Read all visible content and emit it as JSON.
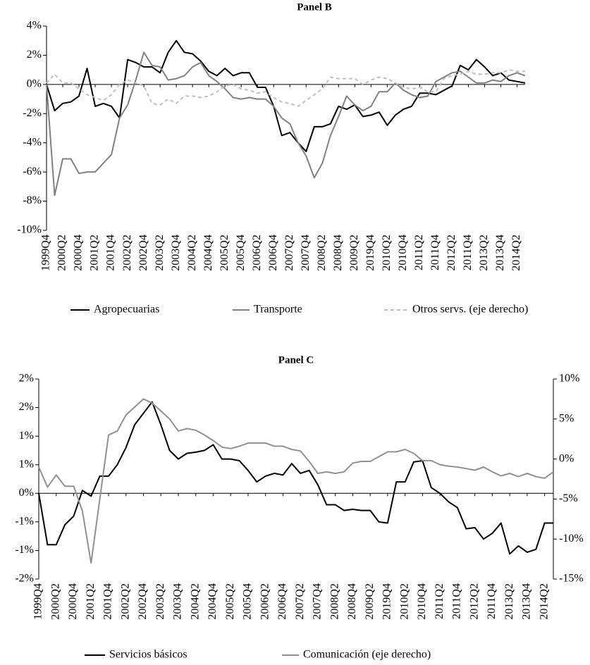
{
  "chart_data": [
    {
      "type": "line",
      "title": "Panel B",
      "categories": [
        "1999Q4",
        null,
        "2000Q2",
        null,
        "2000Q4",
        null,
        "2001Q2",
        null,
        "2001Q4",
        null,
        "2002Q2",
        null,
        "2002Q4",
        null,
        "2003Q2",
        null,
        "2003Q4",
        null,
        "2004Q2",
        null,
        "2004Q4",
        null,
        "2005Q2",
        null,
        "2005Q4",
        null,
        "2006Q2",
        null,
        "2006Q4",
        null,
        "2007Q2",
        null,
        "2007Q4",
        null,
        "2008Q2",
        null,
        "2008Q4",
        null,
        "2009Q2",
        null,
        "2019Q4",
        null,
        "2010Q2",
        null,
        "2010Q4",
        null,
        "2011Q2",
        null,
        "2011Q4",
        null,
        "2012Q2",
        null,
        "2011Q4",
        null,
        "2013Q2",
        null,
        "2013Q4",
        null,
        "2014Q2",
        null
      ],
      "series": [
        {
          "name": "Agropecuarias",
          "color": "#000000",
          "dashed": false,
          "values": [
            0,
            -1.8,
            -1.3,
            -1.2,
            -0.8,
            1.1,
            -1.5,
            -1.3,
            -1.5,
            -2.3,
            1.7,
            1.5,
            1.2,
            1.2,
            0.8,
            2.2,
            3.0,
            2.2,
            2.1,
            1.6,
            0.9,
            0.6,
            1.1,
            0.6,
            0.8,
            0.8,
            -0.2,
            -0.2,
            -1.5,
            -3.5,
            -3.3,
            -4.0,
            -4.6,
            -2.9,
            -2.9,
            -2.7,
            -1.5,
            -1.7,
            -1.4,
            -2.2,
            -2.1,
            -1.9,
            -2.8,
            -2.1,
            -1.7,
            -1.5,
            -0.6,
            -0.6,
            -0.7,
            -0.4,
            -0.1,
            1.3,
            1.0,
            1.7,
            1.2,
            0.6,
            0.8,
            0.3,
            0.2,
            0.1
          ]
        },
        {
          "name": "Transporte",
          "color": "#808080",
          "dashed": false,
          "values": [
            0,
            -7.6,
            -5.1,
            -5.1,
            -6.1,
            -6.0,
            -6.0,
            -5.4,
            -4.8,
            -2.3,
            -1.4,
            0.3,
            2.2,
            1.3,
            1.2,
            0.3,
            0.4,
            0.6,
            1.2,
            1.5,
            0.6,
            0.2,
            -0.3,
            -0.9,
            -1.0,
            -0.9,
            -1.0,
            -1.0,
            -1.5,
            -2.3,
            -2.7,
            -4.0,
            -4.9,
            -6.4,
            -5.4,
            -3.5,
            -2.2,
            -0.8,
            -1.4,
            -1.8,
            -1.5,
            -0.5,
            -0.5,
            0.1,
            -0.4,
            -0.7,
            -0.9,
            -0.8,
            0.2,
            0.5,
            0.8,
            0.9,
            0.5,
            0.1,
            0.1,
            0.3,
            0.2,
            0.6,
            0.8,
            0.6
          ]
        },
        {
          "name": "Otros servs. (eje derecho)",
          "color": "#bfbfbf",
          "dashed": true,
          "values": [
            0.1,
            0.7,
            0.1,
            0.1,
            -0.3,
            -0.7,
            -0.9,
            -1.1,
            -0.7,
            0.0,
            0.3,
            0.1,
            -0.1,
            -1.3,
            -1.4,
            -1.0,
            -1.3,
            -0.8,
            -0.8,
            -0.9,
            -0.8,
            -0.5,
            -0.1,
            0.0,
            -0.3,
            -0.4,
            -0.6,
            -0.5,
            -0.9,
            -1.2,
            -1.3,
            -1.5,
            -1.1,
            -0.7,
            -0.3,
            0.5,
            0.4,
            0.4,
            0.4,
            0.0,
            0.3,
            0.5,
            0.4,
            0.1,
            -0.2,
            -0.3,
            -0.2,
            -0.5,
            -0.5,
            0.4,
            0.6,
            0.7,
            0.9,
            0.7,
            0.7,
            0.8,
            0.8,
            1.0,
            0.9,
            0.9
          ]
        }
      ],
      "ylim": [
        -10,
        4
      ],
      "yticks": [
        {
          "value": -10,
          "label": "-10%"
        },
        {
          "value": -8,
          "label": "-8%"
        },
        {
          "value": -6,
          "label": "-6%"
        },
        {
          "value": -4,
          "label": "-4%"
        },
        {
          "value": -2,
          "label": "-2%"
        },
        {
          "value": 0,
          "label": "0%"
        },
        {
          "value": 2,
          "label": "2%"
        },
        {
          "value": 4,
          "label": "4%"
        }
      ],
      "legend": "bottom"
    },
    {
      "type": "line",
      "title": "Panel C",
      "categories": [
        "1999Q4",
        null,
        "2000Q2",
        null,
        "2000Q4",
        null,
        "2001Q2",
        null,
        "2001Q4",
        null,
        "2002Q2",
        null,
        "2002Q4",
        null,
        "2003Q2",
        null,
        "2003Q4",
        null,
        "2004Q2",
        null,
        "2004Q4",
        null,
        "2005Q2",
        null,
        "2005Q4",
        null,
        "2006Q2",
        null,
        "2006Q4",
        null,
        "2007Q2",
        null,
        "2007Q4",
        null,
        "2008Q2",
        null,
        "2008Q4",
        null,
        "2009Q2",
        null,
        "2019Q4",
        null,
        "2010Q2",
        null,
        "2010Q4",
        null,
        "2011Q2",
        null,
        "2011Q4",
        null,
        "2012Q2",
        null,
        "2011Q4",
        null,
        "2013Q2",
        null,
        "2013Q4",
        null,
        "2014Q2",
        null
      ],
      "series": [
        {
          "name": "Servicios básicos",
          "color": "#000000",
          "dashed": false,
          "values": [
            0,
            -0.9,
            -0.9,
            -0.55,
            -0.4,
            0.05,
            -0.05,
            0.3,
            0.3,
            0.5,
            0.8,
            1.2,
            1.4,
            1.6,
            1.2,
            0.75,
            0.6,
            0.7,
            0.72,
            0.75,
            0.85,
            0.6,
            0.6,
            0.57,
            0.4,
            0.2,
            0.3,
            0.35,
            0.32,
            0.52,
            0.35,
            0.4,
            0.15,
            -0.2,
            -0.2,
            -0.3,
            -0.28,
            -0.3,
            -0.3,
            -0.5,
            -0.52,
            0.2,
            0.2,
            0.55,
            0.57,
            0.1,
            0.0,
            -0.15,
            -0.25,
            -0.62,
            -0.6,
            -0.8,
            -0.7,
            -0.52,
            -1.06,
            -0.92,
            -1.03,
            -0.98,
            -0.52,
            -0.52
          ]
        },
        {
          "name": "Comunicación (eje derecho)",
          "color": "#909090",
          "dashed": false,
          "axis": "y2",
          "values": [
            -1,
            -3.5,
            -2,
            -3.4,
            -3.4,
            -6.5,
            -13,
            -5,
            3,
            3.5,
            5.5,
            6.5,
            7.5,
            7,
            6,
            5,
            3.5,
            3.8,
            3.6,
            3.0,
            2.3,
            1.5,
            1.3,
            1.6,
            2.0,
            2.0,
            2.0,
            1.6,
            1.6,
            1.2,
            1.0,
            -0.3,
            -1.8,
            -1.6,
            -1.8,
            -1.6,
            -0.5,
            -0.3,
            -0.3,
            0.3,
            0.9,
            0.9,
            1.2,
            0.7,
            -0.2,
            -0.2,
            -0.7,
            -0.9,
            -1.0,
            -1.2,
            -1.4,
            -1.0,
            -1.6,
            -2.1,
            -1.8,
            -2.2,
            -1.8,
            -2.2,
            -2.4,
            -1.6
          ]
        }
      ],
      "ylim": [
        -1.5,
        2.0
      ],
      "yticks": [
        {
          "value": -1.5,
          "label": "-2%"
        },
        {
          "value": -1.0,
          "label": "-1%"
        },
        {
          "value": -0.5,
          "label": "-1%"
        },
        {
          "value": 0,
          "label": "0%"
        },
        {
          "value": 0.5,
          "label": "1%"
        },
        {
          "value": 1.0,
          "label": "1%"
        },
        {
          "value": 1.5,
          "label": "2%"
        },
        {
          "value": 2.0,
          "label": "2%"
        }
      ],
      "y2lim": [
        -15,
        10
      ],
      "y2ticks": [
        {
          "value": -15,
          "label": "-15%"
        },
        {
          "value": -10,
          "label": "-10%"
        },
        {
          "value": -5,
          "label": "-5%"
        },
        {
          "value": 0,
          "label": "0%"
        },
        {
          "value": 5,
          "label": "5%"
        },
        {
          "value": 10,
          "label": "10%"
        }
      ],
      "legend": "bottom"
    }
  ]
}
